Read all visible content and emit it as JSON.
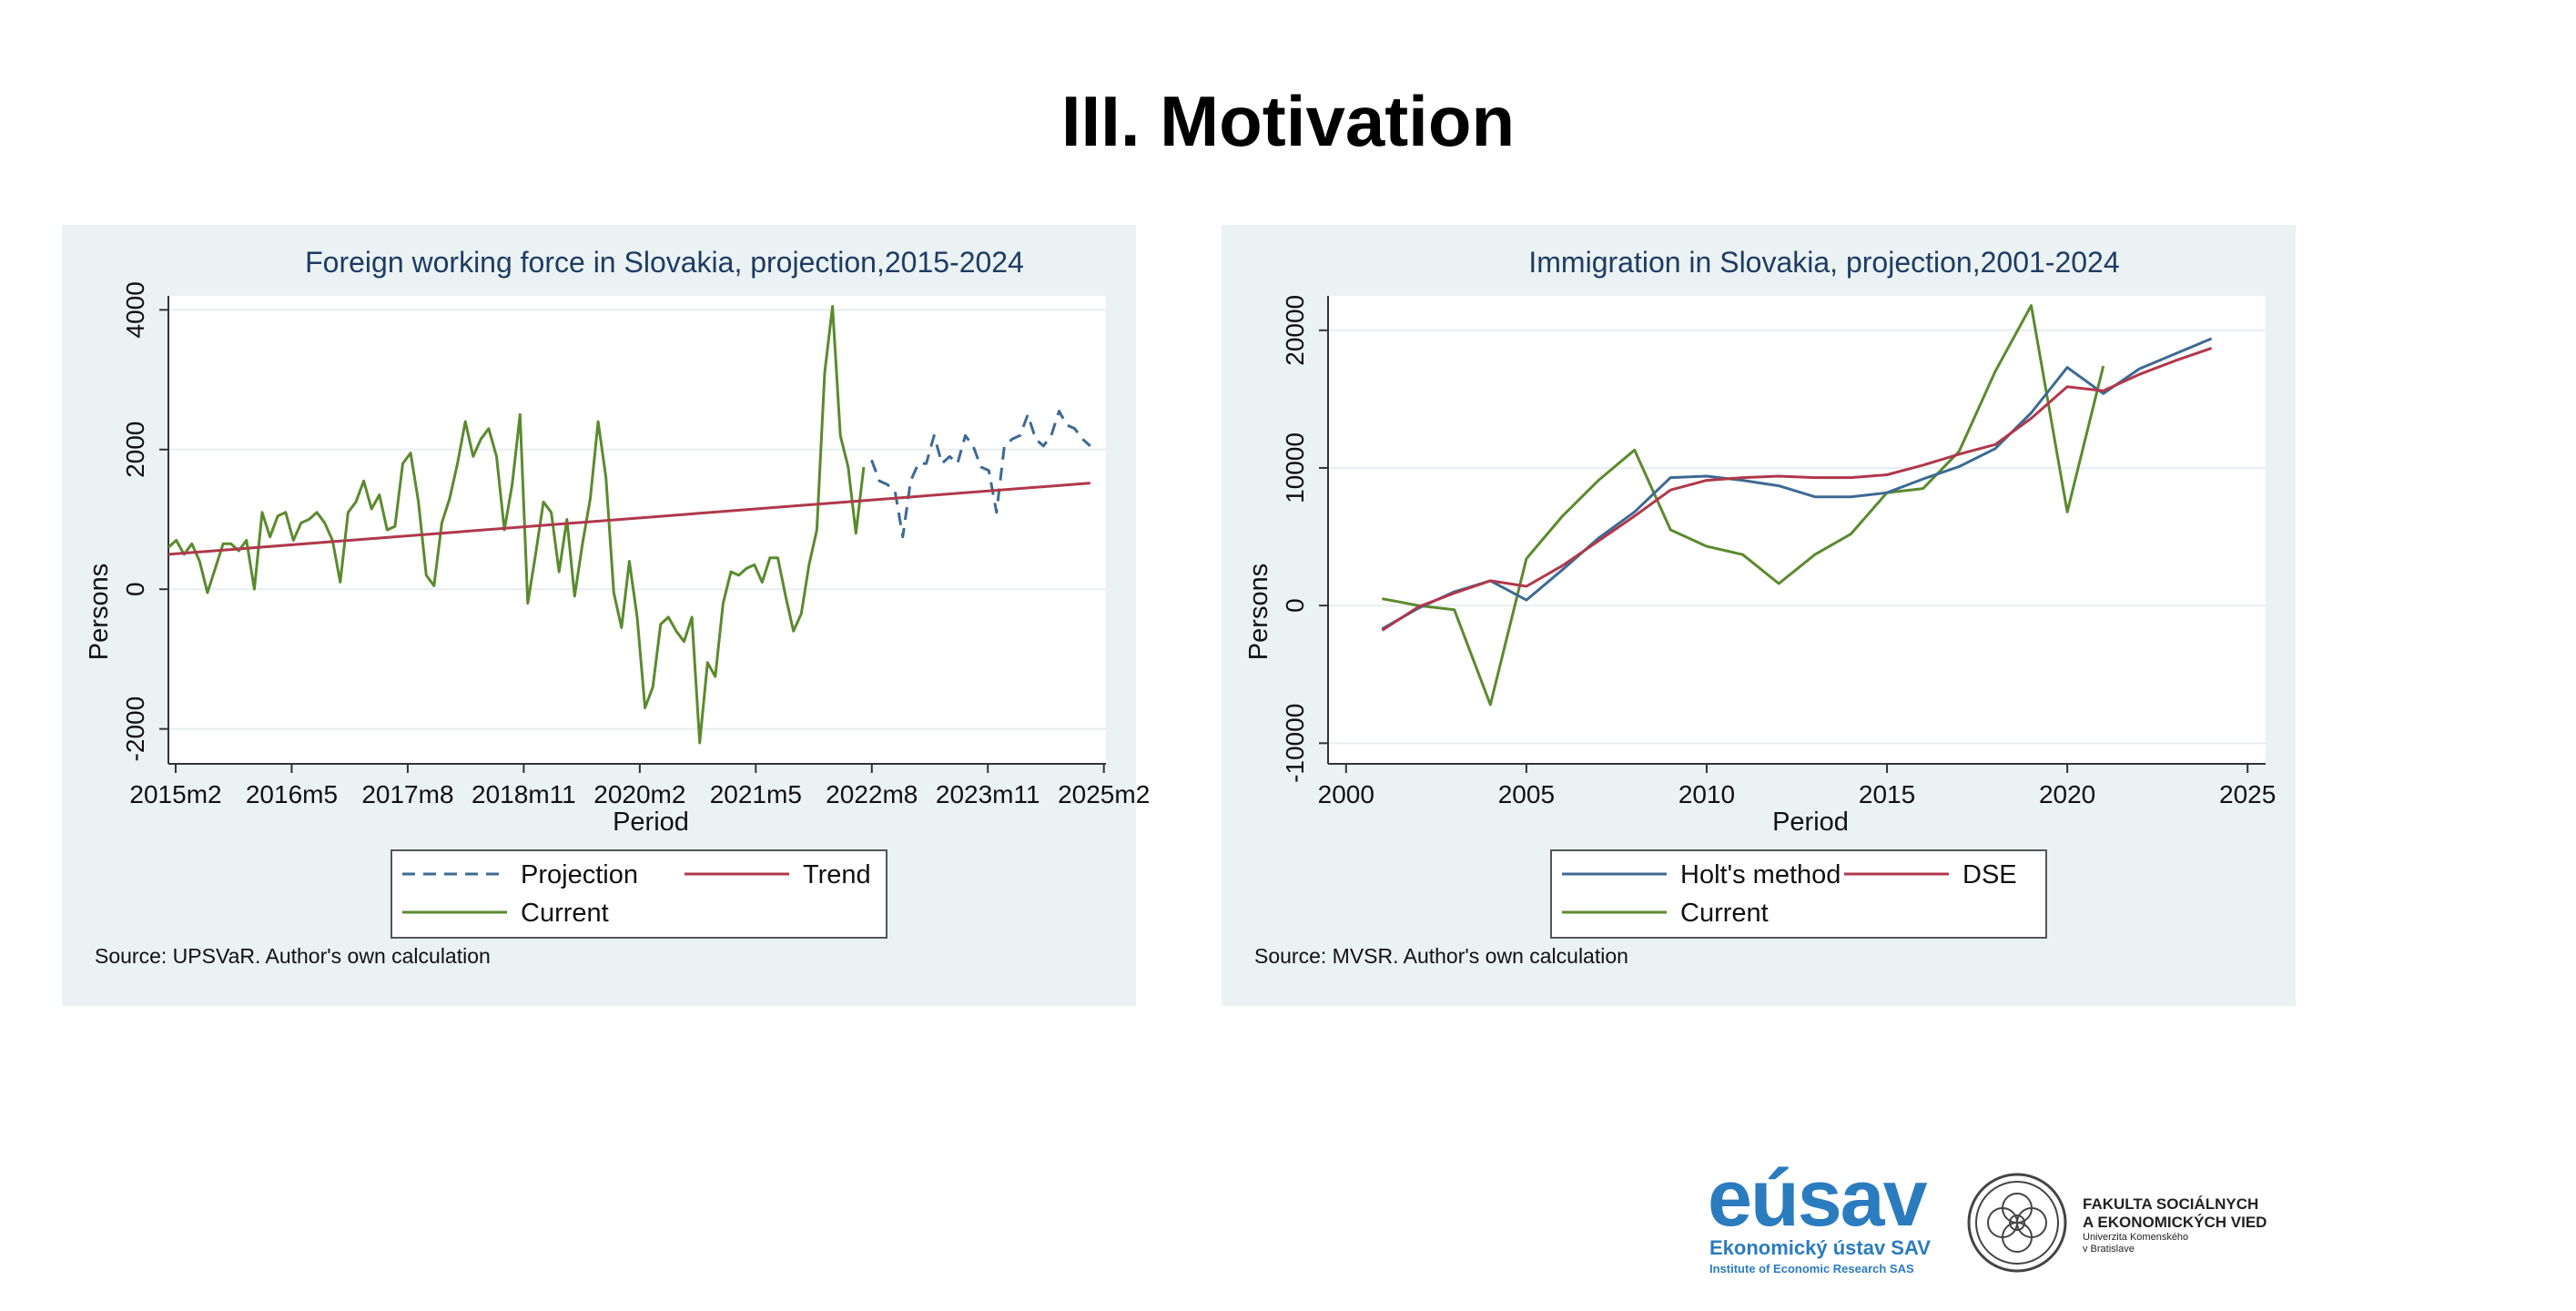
{
  "slide": {
    "title": "III. Motivation"
  },
  "chart_data": [
    {
      "type": "line",
      "title": "Foreign working force in Slovakia, projection,2015-2024",
      "xlabel": "Period",
      "ylabel": "Persons",
      "x_ticks": [
        "2015m2",
        "2016m5",
        "2017m8",
        "2018m11",
        "2020m2",
        "2021m5",
        "2022m8",
        "2023m11",
        "2025m2"
      ],
      "y_ticks": [
        -2000,
        0,
        2000,
        4000
      ],
      "xlim": [
        0,
        120
      ],
      "ylim": [
        -2500,
        4200
      ],
      "grid": true,
      "legend_position": "bottom",
      "legend": [
        "Projection",
        "Trend",
        "Current"
      ],
      "source": "Source: UPSVaR. Author's own calculation",
      "series": [
        {
          "name": "Current",
          "color": "#5b8a2e",
          "style": "solid",
          "x": [
            0,
            1,
            2,
            3,
            4,
            5,
            6,
            7,
            8,
            9,
            10,
            11,
            12,
            13,
            14,
            15,
            16,
            17,
            18,
            19,
            20,
            21,
            22,
            23,
            24,
            25,
            26,
            27,
            28,
            29,
            30,
            31,
            32,
            33,
            34,
            35,
            36,
            37,
            38,
            39,
            40,
            41,
            42,
            43,
            44,
            45,
            46,
            47,
            48,
            49,
            50,
            51,
            52,
            53,
            54,
            55,
            56,
            57,
            58,
            59,
            60,
            61,
            62,
            63,
            64,
            65,
            66,
            67,
            68,
            69,
            70,
            71,
            72,
            73,
            74,
            75,
            76,
            77,
            78,
            79,
            80,
            81,
            82,
            83,
            84,
            85,
            86,
            87,
            88,
            89
          ],
          "values": [
            600,
            700,
            500,
            650,
            400,
            -50,
            300,
            650,
            650,
            550,
            700,
            0,
            1100,
            750,
            1050,
            1100,
            700,
            950,
            1000,
            1100,
            950,
            700,
            100,
            1100,
            1250,
            1550,
            1150,
            1350,
            850,
            900,
            1800,
            1950,
            1250,
            200,
            50,
            950,
            1300,
            1800,
            2400,
            1900,
            2150,
            2300,
            1900,
            850,
            1500,
            2500,
            -200,
            500,
            1250,
            1100,
            250,
            1000,
            -100,
            650,
            1300,
            2400,
            1600,
            -50,
            -550,
            400,
            -400,
            -1700,
            -1400,
            -500,
            -400,
            -600,
            -750,
            -400,
            -2200,
            -1050,
            -1250,
            -200,
            250,
            200,
            300,
            350,
            100,
            450,
            450,
            -100,
            -600,
            -350,
            350,
            850,
            3100,
            4050,
            2200,
            1750,
            800,
            1750
          ]
        },
        {
          "name": "Projection",
          "color": "#3d6a93",
          "style": "dashed",
          "x": [
            90,
            91,
            92,
            93,
            94,
            95,
            96,
            97,
            98,
            99,
            100,
            101,
            102,
            103,
            104,
            105,
            106,
            107,
            108,
            109,
            110,
            111,
            112,
            113,
            114,
            115,
            116,
            117,
            118
          ],
          "values": [
            1850,
            1550,
            1500,
            1400,
            750,
            1550,
            1800,
            1800,
            2200,
            1800,
            1900,
            1800,
            2200,
            2050,
            1750,
            1700,
            1100,
            2050,
            2150,
            2200,
            2500,
            2150,
            2050,
            2200,
            2550,
            2350,
            2300,
            2150,
            2050
          ]
        },
        {
          "name": "Trend",
          "color": "#b0384a",
          "style": "solid",
          "x": [
            0,
            118
          ],
          "values": [
            500,
            1520
          ]
        }
      ]
    },
    {
      "type": "line",
      "title": "Immigration in Slovakia, projection,2001-2024",
      "xlabel": "Period",
      "ylabel": "Persons",
      "x_ticks": [
        2000,
        2005,
        2010,
        2015,
        2020,
        2025
      ],
      "y_ticks": [
        -10000,
        0,
        10000,
        20000
      ],
      "xlim": [
        1999.5,
        2025.5
      ],
      "ylim": [
        -11500,
        22500
      ],
      "grid": true,
      "legend_position": "bottom",
      "legend": [
        "Holt's method",
        "DSE",
        "Current"
      ],
      "source": "Source: MVSR. Author's own calculation",
      "series": [
        {
          "name": "Current",
          "color": "#5b8a2e",
          "style": "solid",
          "x": [
            2001,
            2002,
            2003,
            2004,
            2005,
            2006,
            2007,
            2008,
            2009,
            2010,
            2011,
            2012,
            2013,
            2014,
            2015,
            2016,
            2017,
            2018,
            2019,
            2020,
            2021
          ],
          "values": [
            500,
            0,
            -300,
            -7200,
            3400,
            6500,
            9100,
            11300,
            5500,
            4300,
            3700,
            1600,
            3700,
            5200,
            8200,
            8500,
            11200,
            17000,
            21800,
            6800,
            17400
          ]
        },
        {
          "name": "Holt's method",
          "color": "#3d6a93",
          "style": "solid",
          "x": [
            2001,
            2002,
            2003,
            2004,
            2005,
            2006,
            2007,
            2008,
            2009,
            2010,
            2011,
            2012,
            2013,
            2014,
            2015,
            2016,
            2017,
            2018,
            2019,
            2020,
            2021,
            2022,
            2023,
            2024
          ],
          "values": [
            -1700,
            -200,
            1000,
            1800,
            400,
            2600,
            4900,
            6800,
            9300,
            9400,
            9100,
            8700,
            7900,
            7900,
            8200,
            9200,
            10100,
            11400,
            14000,
            17300,
            15400,
            17200,
            18300,
            19400
          ]
        },
        {
          "name": "DSE",
          "color": "#b0384a",
          "style": "solid",
          "x": [
            2001,
            2002,
            2003,
            2004,
            2005,
            2006,
            2007,
            2008,
            2009,
            2010,
            2011,
            2012,
            2013,
            2014,
            2015,
            2016,
            2017,
            2018,
            2019,
            2020,
            2021,
            2022,
            2023,
            2024
          ],
          "values": [
            -1800,
            -100,
            900,
            1800,
            1400,
            2900,
            4700,
            6500,
            8400,
            9100,
            9300,
            9400,
            9300,
            9300,
            9500,
            10200,
            11000,
            11700,
            13600,
            15900,
            15600,
            16800,
            17800,
            18700
          ]
        }
      ]
    }
  ],
  "logos": {
    "eusav": {
      "word": "eúsav",
      "sub1": "Ekonomický ústav SAV",
      "sub2": "Institute of Economic Research SAS"
    },
    "fsev": {
      "line1": "FAKULTA SOCIÁLNYCH",
      "line2": "A EKONOMICKÝCH VIED",
      "line3": "Univerzita Komenského",
      "line4": "v Bratislave"
    }
  }
}
